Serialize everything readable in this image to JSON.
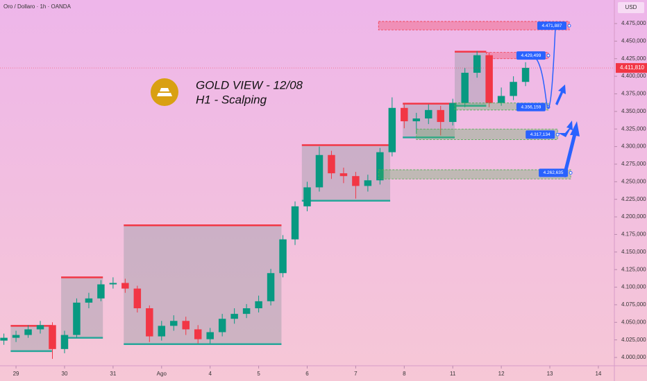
{
  "chart_data": {
    "type": "candlestick",
    "title": "Oro / Dollaro · 1h · OANDA",
    "annotation_title": "GOLD VIEW - 12/08",
    "annotation_subtitle": "H1 - Scalping",
    "currency": "USD",
    "last_price": {
      "value": 4411.81,
      "label": "4.411,810"
    },
    "up_color": "#089981",
    "down_color": "#f23645",
    "x": [
      -0.25,
      0,
      0.25,
      0.5,
      0.75,
      1,
      1.25,
      1.5,
      1.75,
      2,
      2.25,
      2.5,
      2.75,
      3,
      3.25,
      3.5,
      3.75,
      4,
      4.25,
      4.5,
      4.75,
      5,
      5.25,
      5.5,
      5.75,
      6,
      6.25,
      6.5,
      6.75,
      7,
      7.25,
      7.5,
      7.75,
      8,
      8.25,
      8.5,
      8.75,
      9,
      9.25,
      9.5,
      9.75,
      10,
      10.25,
      10.5
    ],
    "open": [
      4024,
      4028,
      4032,
      4040,
      4046,
      4012,
      4032,
      4078,
      4084,
      4104,
      4106,
      4098,
      4070,
      4030,
      4045,
      4052,
      4040,
      4026,
      4036,
      4055,
      4062,
      4070,
      4080,
      4120,
      4168,
      4215,
      4242,
      4288,
      4262,
      4258,
      4244,
      4252,
      4292,
      4355,
      4336,
      4340,
      4352,
      4335,
      4362,
      4405,
      4430,
      4362,
      4372,
      4392
    ],
    "high": [
      4034,
      4038,
      4046,
      4052,
      4050,
      4038,
      4084,
      4092,
      4110,
      4114,
      4112,
      4102,
      4074,
      4052,
      4060,
      4058,
      4046,
      4042,
      4062,
      4070,
      4076,
      4088,
      4126,
      4174,
      4222,
      4250,
      4300,
      4294,
      4270,
      4264,
      4260,
      4298,
      4370,
      4360,
      4348,
      4360,
      4358,
      4368,
      4412,
      4436,
      4434,
      4384,
      4400,
      4420
    ],
    "low": [
      4018,
      4022,
      4028,
      4034,
      3998,
      4006,
      4028,
      4070,
      4080,
      4098,
      4092,
      4064,
      4022,
      4024,
      4038,
      4032,
      4020,
      4020,
      4030,
      4048,
      4056,
      4064,
      4074,
      4114,
      4160,
      4208,
      4236,
      4254,
      4248,
      4226,
      4236,
      4246,
      4286,
      4326,
      4318,
      4332,
      4316,
      4330,
      4356,
      4398,
      4356,
      4358,
      4366,
      4386
    ],
    "close": [
      4028,
      4032,
      4040,
      4046,
      4012,
      4032,
      4078,
      4084,
      4104,
      4106,
      4098,
      4070,
      4030,
      4045,
      4052,
      4040,
      4026,
      4036,
      4055,
      4062,
      4070,
      4080,
      4120,
      4168,
      4215,
      4242,
      4288,
      4262,
      4258,
      4244,
      4252,
      4292,
      4355,
      4336,
      4340,
      4352,
      4335,
      4362,
      4405,
      4430,
      4362,
      4372,
      4392,
      4412
    ],
    "ranges": [
      {
        "x": [
          -0.11,
          0.74
        ],
        "y": [
          4009,
          4045
        ]
      },
      {
        "x": [
          0.93,
          1.79
        ],
        "y": [
          4028,
          4114
        ]
      },
      {
        "x": [
          2.22,
          5.47
        ],
        "y": [
          4019,
          4188
        ]
      },
      {
        "x": [
          5.89,
          7.71
        ],
        "y": [
          4223,
          4302
        ]
      },
      {
        "x": [
          7.97,
          9.04
        ],
        "y": [
          4313,
          4361
        ]
      },
      {
        "x": [
          9.04,
          9.69
        ],
        "y": [
          4358,
          4435
        ]
      }
    ],
    "levels": [
      {
        "x": [
          7.47,
          11.4
        ],
        "y": [
          4466,
          4478
        ],
        "color": "#f23645",
        "label": {
          "value": 4471.887,
          "label": "4.471,887"
        }
      },
      {
        "x": [
          9.69,
          10.97
        ],
        "y": [
          4425,
          4434
        ],
        "color": "#f23645",
        "label": {
          "value": 4429.499,
          "label": "4.429,499"
        }
      },
      {
        "x": [
          9.04,
          10.97
        ],
        "y": [
          4352,
          4362
        ],
        "color": "#4caf50",
        "label": {
          "value": 4356.159,
          "label": "4.356,159"
        }
      },
      {
        "x": [
          8.25,
          11.16
        ],
        "y": [
          4310,
          4325
        ],
        "color": "#4caf50",
        "label": {
          "value": 4317.134,
          "label": "4.317,134"
        }
      },
      {
        "x": [
          7.47,
          11.43
        ],
        "y": [
          4254,
          4267
        ],
        "color": "#4caf50",
        "label": {
          "value": 4262.635,
          "label": "4.262,635"
        }
      }
    ],
    "xlim": [
      -0.33,
      12.33
    ],
    "ylim": [
      3988.2,
      4508.5
    ],
    "xticks": [
      {
        "value": 0,
        "label": "29"
      },
      {
        "value": 1,
        "label": "30"
      },
      {
        "value": 2,
        "label": "31"
      },
      {
        "value": 3,
        "label": "Ago"
      },
      {
        "value": 4,
        "label": "4"
      },
      {
        "value": 5,
        "label": "5"
      },
      {
        "value": 6,
        "label": "6"
      },
      {
        "value": 7,
        "label": "7"
      },
      {
        "value": 8,
        "label": "8"
      },
      {
        "value": 9,
        "label": "11"
      },
      {
        "value": 10,
        "label": "12"
      },
      {
        "value": 11,
        "label": "13"
      },
      {
        "value": 12,
        "label": "14"
      }
    ],
    "yticks": [
      {
        "value": 4000,
        "label": "4.000,000"
      },
      {
        "value": 4025,
        "label": "4.025,000"
      },
      {
        "value": 4050,
        "label": "4.050,000"
      },
      {
        "value": 4075,
        "label": "4.075,000"
      },
      {
        "value": 4100,
        "label": "4.100,000"
      },
      {
        "value": 4125,
        "label": "4.125,000"
      },
      {
        "value": 4150,
        "label": "4.150,000"
      },
      {
        "value": 4175,
        "label": "4.175,000"
      },
      {
        "value": 4200,
        "label": "4.200,000"
      },
      {
        "value": 4225,
        "label": "4.225,000"
      },
      {
        "value": 4250,
        "label": "4.250,000"
      },
      {
        "value": 4275,
        "label": "4.275,000"
      },
      {
        "value": 4300,
        "label": "4.300,000"
      },
      {
        "value": 4325,
        "label": "4.325,000"
      },
      {
        "value": 4350,
        "label": "4.350,000"
      },
      {
        "value": 4375,
        "label": "4.375,000"
      },
      {
        "value": 4400,
        "label": "4.400,000"
      },
      {
        "value": 4425,
        "label": "4.425,000"
      },
      {
        "value": 4450,
        "label": "4.450,000"
      },
      {
        "value": 4475,
        "label": "4.475,000"
      }
    ]
  }
}
